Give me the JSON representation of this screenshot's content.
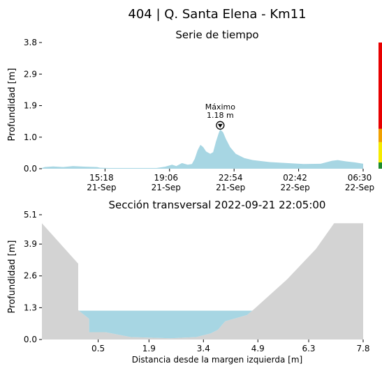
{
  "title": "404 | Q. Santa Elena - Km11",
  "chart_data": [
    {
      "type": "area",
      "title": "Serie de tiempo",
      "ylabel": "Profundidad [m]",
      "xlabel": "",
      "ylim": [
        0,
        3.8
      ],
      "yticks": [
        "0.0",
        "1.0",
        "1.9",
        "2.9",
        "3.8"
      ],
      "ytick_values": [
        0,
        0.95,
        1.9,
        2.85,
        3.8
      ],
      "xlim": [
        "2022-09-21T11:35",
        "2022-09-22T06:30"
      ],
      "xticks": [
        {
          "t": "2022-09-21T15:18",
          "label1": "15:18",
          "label2": "21-Sep"
        },
        {
          "t": "2022-09-21T19:06",
          "label1": "19:06",
          "label2": "21-Sep"
        },
        {
          "t": "2022-09-21T22:54",
          "label1": "22:54",
          "label2": "21-Sep"
        },
        {
          "t": "2022-09-22T02:42",
          "label1": "02:42",
          "label2": "22-Sep"
        },
        {
          "t": "2022-09-22T06:30",
          "label1": "06:30",
          "label2": "22-Sep"
        }
      ],
      "fill_color": "#a7d6e3",
      "series": [
        {
          "points": [
            [
              "2022-09-21T11:35",
              0.02
            ],
            [
              "2022-09-21T11:45",
              0.05
            ],
            [
              "2022-09-21T12:15",
              0.07
            ],
            [
              "2022-09-21T12:50",
              0.05
            ],
            [
              "2022-09-21T13:25",
              0.08
            ],
            [
              "2022-09-21T14:10",
              0.06
            ],
            [
              "2022-09-21T14:50",
              0.05
            ],
            [
              "2022-09-21T15:00",
              0.03
            ],
            [
              "2022-09-21T15:30",
              0.02
            ],
            [
              "2022-09-21T16:30",
              0.02
            ],
            [
              "2022-09-21T17:30",
              0.02
            ],
            [
              "2022-09-21T18:20",
              0.02
            ],
            [
              "2022-09-21T18:50",
              0.06
            ],
            [
              "2022-09-21T19:15",
              0.12
            ],
            [
              "2022-09-21T19:30",
              0.08
            ],
            [
              "2022-09-21T19:50",
              0.17
            ],
            [
              "2022-09-21T20:10",
              0.12
            ],
            [
              "2022-09-21T20:25",
              0.14
            ],
            [
              "2022-09-21T20:35",
              0.3
            ],
            [
              "2022-09-21T20:45",
              0.55
            ],
            [
              "2022-09-21T20:55",
              0.72
            ],
            [
              "2022-09-21T21:05",
              0.65
            ],
            [
              "2022-09-21T21:15",
              0.52
            ],
            [
              "2022-09-21T21:30",
              0.45
            ],
            [
              "2022-09-21T21:40",
              0.5
            ],
            [
              "2022-09-21T21:50",
              0.82
            ],
            [
              "2022-09-21T22:00",
              1.08
            ],
            [
              "2022-09-21T22:05",
              1.18
            ],
            [
              "2022-09-21T22:15",
              1.1
            ],
            [
              "2022-09-21T22:25",
              0.9
            ],
            [
              "2022-09-21T22:40",
              0.65
            ],
            [
              "2022-09-21T23:00",
              0.45
            ],
            [
              "2022-09-21T23:30",
              0.32
            ],
            [
              "2022-09-22T00:00",
              0.26
            ],
            [
              "2022-09-22T01:00",
              0.2
            ],
            [
              "2022-09-22T02:00",
              0.17
            ],
            [
              "2022-09-22T03:00",
              0.14
            ],
            [
              "2022-09-22T04:00",
              0.15
            ],
            [
              "2022-09-22T04:40",
              0.24
            ],
            [
              "2022-09-22T05:00",
              0.26
            ],
            [
              "2022-09-22T05:30",
              0.22
            ],
            [
              "2022-09-22T06:00",
              0.19
            ],
            [
              "2022-09-22T06:30",
              0.15
            ]
          ]
        }
      ],
      "annotation": {
        "t": "2022-09-21T22:05",
        "y": 1.18,
        "label1": "Máximo",
        "label2": "1.18 m"
      },
      "alert_bar": [
        {
          "from": 0,
          "to": 0.19,
          "color": "#1e8c2e"
        },
        {
          "from": 0.19,
          "to": 0.8,
          "color": "#f5eb00"
        },
        {
          "from": 0.8,
          "to": 1.2,
          "color": "#f0a000"
        },
        {
          "from": 1.2,
          "to": 3.8,
          "color": "#e80000"
        }
      ]
    },
    {
      "type": "area",
      "title": "Sección transversal 2022-09-21 22:05:00",
      "ylabel": "Profundidad [m]",
      "xlabel": "Distancia desde la margen izquierda [m]",
      "xlim": [
        -1.05,
        7.8
      ],
      "ylim": [
        0,
        5.1
      ],
      "xticks": [
        "0.5",
        "1.9",
        "3.4",
        "4.9",
        "6.3",
        "7.8"
      ],
      "xtick_values": [
        0.5,
        1.9,
        3.4,
        4.9,
        6.3,
        7.8
      ],
      "yticks": [
        "0.0",
        "1.3",
        "2.6",
        "3.9",
        "5.1"
      ],
      "ytick_values": [
        0,
        1.3,
        2.6,
        3.9,
        5.1
      ],
      "ground_color": "#d3d3d3",
      "water_color": "#a7d6e3",
      "ground_profile": [
        [
          -1.05,
          4.75
        ],
        [
          -0.05,
          3.1
        ],
        [
          -0.05,
          1.2
        ],
        [
          0.25,
          0.85
        ],
        [
          0.25,
          0.3
        ],
        [
          0.7,
          0.3
        ],
        [
          1.4,
          0.1
        ],
        [
          2.5,
          0.05
        ],
        [
          3.2,
          0.1
        ],
        [
          3.6,
          0.25
        ],
        [
          3.8,
          0.4
        ],
        [
          4.0,
          0.75
        ],
        [
          4.6,
          1.0
        ],
        [
          4.8,
          1.25
        ],
        [
          5.7,
          2.45
        ],
        [
          6.5,
          3.7
        ],
        [
          7.0,
          4.75
        ],
        [
          7.8,
          4.75
        ]
      ],
      "water_level": 1.18
    }
  ]
}
